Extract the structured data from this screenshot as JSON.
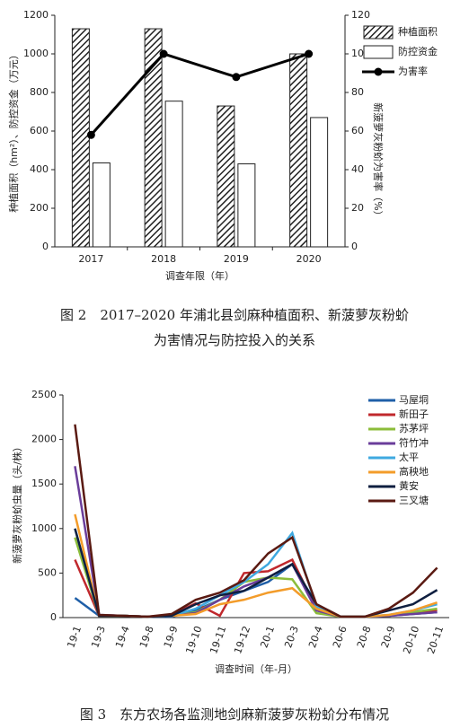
{
  "chart_data": [
    {
      "type": "bar",
      "x_label": "调查年限（年）",
      "y_label": "种植面积（hm²）、防控资金（万元）",
      "y2_label": "新菠萝灰粉蚧为害率（%）",
      "categories": [
        "2017",
        "2018",
        "2019",
        "2020"
      ],
      "series": [
        {
          "name": "种植面积",
          "color": "#222222",
          "pattern": "hatch",
          "values": [
            1130,
            1130,
            730,
            1000
          ]
        },
        {
          "name": "防控资金",
          "color": "#222222",
          "pattern": "none",
          "values": [
            435,
            755,
            430,
            670
          ]
        },
        {
          "name": "为害率",
          "type": "line",
          "axis": "y2",
          "color": "#000000",
          "values": [
            58,
            100,
            88,
            100
          ]
        }
      ],
      "ylim": [
        0,
        1200
      ],
      "yticks": [
        0,
        200,
        400,
        600,
        800,
        1000,
        1200
      ],
      "y2lim": [
        0,
        120
      ],
      "y2ticks": [
        0,
        20,
        40,
        60,
        80,
        100,
        120
      ],
      "legend": "right",
      "caption": [
        "图 2　2017–2020 年浦北县剑麻种植面积、新菠萝灰粉蚧",
        "为害情况与防控投入的关系"
      ]
    },
    {
      "type": "line",
      "x_label": "调查时间（年-月）",
      "y_label": "新菠萝灰粉蚧虫量（头/株）",
      "categories": [
        "19-1",
        "19-3",
        "19-4",
        "19-8",
        "19-9",
        "19-10",
        "19-11",
        "19-12",
        "20-1",
        "20-3",
        "20-4",
        "20-6",
        "20-8",
        "20-9",
        "20-10",
        "20-11"
      ],
      "series": [
        {
          "name": "马屋垌",
          "color": "#1f5fa8",
          "values": [
            220,
            20,
            20,
            10,
            10,
            80,
            200,
            300,
            400,
            600,
            100,
            10,
            10,
            20,
            40,
            60
          ]
        },
        {
          "name": "新田子",
          "color": "#c0282d",
          "values": [
            650,
            20,
            20,
            10,
            30,
            160,
            20,
            500,
            520,
            650,
            100,
            10,
            10,
            20,
            50,
            80
          ]
        },
        {
          "name": "苏茅坪",
          "color": "#8cbd3a",
          "values": [
            900,
            20,
            20,
            10,
            20,
            60,
            200,
            400,
            450,
            430,
            50,
            10,
            10,
            20,
            60,
            100
          ]
        },
        {
          "name": "符竹冲",
          "color": "#6a3d9a",
          "values": [
            1700,
            30,
            20,
            10,
            20,
            50,
            200,
            350,
            450,
            600,
            80,
            10,
            10,
            20,
            40,
            60
          ]
        },
        {
          "name": "太平",
          "color": "#3fa9e0",
          "values": [
            1000,
            20,
            20,
            10,
            20,
            100,
            250,
            400,
            600,
            950,
            120,
            10,
            10,
            30,
            80,
            150
          ]
        },
        {
          "name": "高秧地",
          "color": "#f39c2a",
          "values": [
            1160,
            20,
            20,
            10,
            20,
            40,
            150,
            200,
            280,
            330,
            100,
            10,
            10,
            30,
            80,
            170
          ]
        },
        {
          "name": "黄安",
          "color": "#0f1f40",
          "values": [
            1000,
            20,
            20,
            10,
            20,
            150,
            250,
            300,
            450,
            600,
            150,
            10,
            10,
            80,
            150,
            310
          ]
        },
        {
          "name": "三叉塘",
          "color": "#5a1a12",
          "values": [
            2170,
            30,
            20,
            10,
            40,
            200,
            280,
            420,
            720,
            900,
            150,
            10,
            10,
            100,
            280,
            560
          ]
        }
      ],
      "ylim": [
        0,
        2500
      ],
      "yticks": [
        0,
        500,
        1000,
        1500,
        2000,
        2500
      ],
      "legend": "upper right",
      "caption": [
        "图 3　东方农场各监测地剑麻新菠萝灰粉蚧分布情况"
      ]
    }
  ]
}
